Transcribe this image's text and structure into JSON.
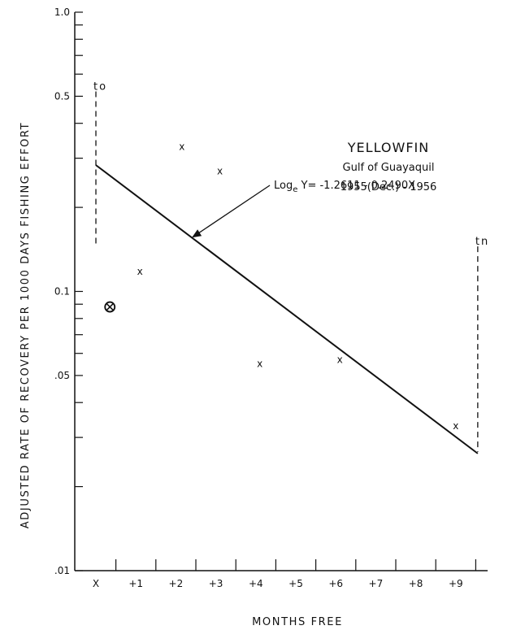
{
  "chart_data": {
    "type": "scatter",
    "title": "YELLOWFIN",
    "subtitle_lines": [
      "Gulf of Guayaquil",
      "1955(Dec.) - 1956"
    ],
    "xlabel": "MONTHS FREE",
    "ylabel": "ADJUSTED RATE OF RECOVERY PER 1000 DAYS FISHING EFFORT",
    "y_scale": "log",
    "ylim": [
      0.01,
      1.0
    ],
    "xlim": [
      -0.5,
      10.0
    ],
    "x_tick_labels": [
      {
        "x": 0,
        "label": "X"
      },
      {
        "x": 1,
        "label": "+1"
      },
      {
        "x": 2,
        "label": "+2"
      },
      {
        "x": 3,
        "label": "+3"
      },
      {
        "x": 4,
        "label": "+4"
      },
      {
        "x": 5,
        "label": "+5"
      },
      {
        "x": 6,
        "label": "+6"
      },
      {
        "x": 7,
        "label": "+7"
      },
      {
        "x": 8,
        "label": "+8"
      },
      {
        "x": 9,
        "label": "+9"
      }
    ],
    "y_tick_labels": [
      {
        "y": 1.0,
        "label": "1.0"
      },
      {
        "y": 0.5,
        "label": "0.5"
      },
      {
        "y": 0.1,
        "label": "0.1"
      },
      {
        "y": 0.05,
        "label": ".05"
      },
      {
        "y": 0.01,
        "label": ".01"
      }
    ],
    "series": [
      {
        "marker": "x",
        "points": [
          {
            "x": 1.1,
            "y": 0.118
          },
          {
            "x": 2.15,
            "y": 0.33
          },
          {
            "x": 3.1,
            "y": 0.27
          },
          {
            "x": 4.1,
            "y": 0.055
          },
          {
            "x": 6.1,
            "y": 0.057
          },
          {
            "x": 9.0,
            "y": 0.033
          }
        ]
      },
      {
        "marker": "circled-x",
        "points": [
          {
            "x": 0.35,
            "y": 0.088
          }
        ]
      }
    ],
    "regression": {
      "label": "Log",
      "label_subscript": "e",
      "label_rest": " Y= -1.2611 - 0.2490X",
      "intercept": -1.2611,
      "slope": -0.249,
      "x_from": 0,
      "x_to": 9.55
    },
    "verticals": [
      {
        "label": "t",
        "label_sub": "o",
        "x": 0,
        "y_top": 0.52,
        "y_bottom": 0.145
      },
      {
        "label": "t",
        "label_sub": "n",
        "x": 9.55,
        "y_top": 0.145,
        "y_bottom": 0.0266
      }
    ]
  }
}
